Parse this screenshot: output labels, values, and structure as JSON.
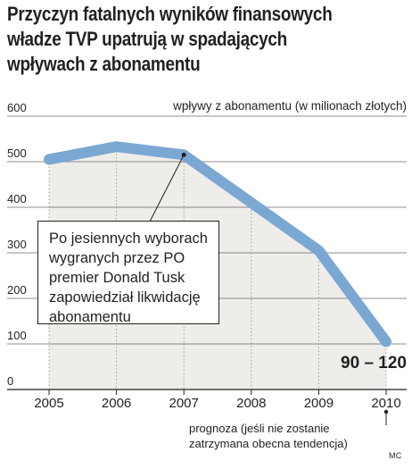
{
  "title_lines": [
    "Przyczyn fatalnych wyników finansowych",
    "władze TVP upatrują w spadających",
    "wpływach z abonamentu"
  ],
  "chart_data": {
    "type": "line",
    "title": "Przyczyn fatalnych wyników finansowych władze TVP upatrują w spadających wpływach z abonamentu",
    "ylabel": "wpływy z abonamentu (w milionach złotych)",
    "xlabel": "",
    "x": [
      "2005",
      "2006",
      "2007",
      "2008",
      "2009",
      "2010"
    ],
    "y": [
      505,
      533,
      515,
      410,
      305,
      105
    ],
    "ylim": [
      0,
      600
    ],
    "yticks": [
      "600",
      "500",
      "400",
      "300",
      "200",
      "100",
      "0"
    ],
    "grid": "horizontal lines, vertical dotted lines at years",
    "line_color": "#7ba7d3",
    "area_color": "#efedea",
    "range_label": "90 – 120",
    "annotation": [
      "Po jesiennych wyborach",
      "wygranych przez PO",
      "premier Donald Tusk",
      "zapowiedział likwidację",
      "abonamentu"
    ],
    "forecast_note": [
      "prognoza (jeśli nie zostanie",
      "zatrzymana obecna tendencja)"
    ]
  },
  "credit": "MC"
}
